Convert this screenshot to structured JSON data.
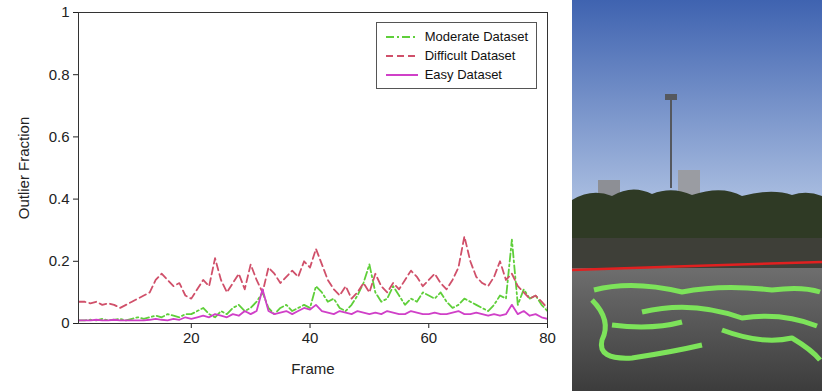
{
  "chart_data": {
    "type": "line",
    "x_label": "Frame",
    "y_label": "Outlier Fraction",
    "x": [
      1,
      2,
      3,
      4,
      5,
      6,
      7,
      8,
      9,
      10,
      11,
      12,
      13,
      14,
      15,
      16,
      17,
      18,
      19,
      20,
      21,
      22,
      23,
      24,
      25,
      26,
      27,
      28,
      29,
      30,
      31,
      32,
      33,
      34,
      35,
      36,
      37,
      38,
      39,
      40,
      41,
      42,
      43,
      44,
      45,
      46,
      47,
      48,
      49,
      50,
      51,
      52,
      53,
      54,
      55,
      56,
      57,
      58,
      59,
      60,
      61,
      62,
      63,
      64,
      65,
      66,
      67,
      68,
      69,
      70,
      71,
      72,
      73,
      74,
      75,
      76,
      77,
      78,
      79,
      80
    ],
    "xlim": [
      1,
      80
    ],
    "xticks": [
      20,
      40,
      60,
      80
    ],
    "ylim": [
      0,
      1
    ],
    "yticks": [
      0,
      0.2,
      0.4,
      0.6,
      0.8,
      1
    ],
    "grid": false,
    "legend": "upper right",
    "series": [
      {
        "name": "Moderate Dataset",
        "color": "#5fcf3a",
        "line_style": "dashdot",
        "values": [
          0.01,
          0.01,
          0.012,
          0.01,
          0.015,
          0.01,
          0.012,
          0.015,
          0.01,
          0.015,
          0.02,
          0.015,
          0.02,
          0.025,
          0.02,
          0.03,
          0.025,
          0.02,
          0.03,
          0.03,
          0.04,
          0.05,
          0.03,
          0.02,
          0.04,
          0.03,
          0.05,
          0.06,
          0.04,
          0.05,
          0.07,
          0.1,
          0.05,
          0.03,
          0.05,
          0.06,
          0.04,
          0.05,
          0.06,
          0.05,
          0.12,
          0.1,
          0.07,
          0.08,
          0.05,
          0.04,
          0.06,
          0.09,
          0.13,
          0.19,
          0.1,
          0.07,
          0.08,
          0.12,
          0.09,
          0.06,
          0.08,
          0.07,
          0.1,
          0.09,
          0.08,
          0.1,
          0.07,
          0.05,
          0.06,
          0.08,
          0.07,
          0.06,
          0.05,
          0.04,
          0.06,
          0.09,
          0.08,
          0.27,
          0.06,
          0.11,
          0.08,
          0.09,
          0.06,
          0.04
        ]
      },
      {
        "name": "Difficult Dataset",
        "color": "#d0506a",
        "line_style": "dashed",
        "values": [
          0.07,
          0.07,
          0.065,
          0.07,
          0.06,
          0.065,
          0.06,
          0.05,
          0.06,
          0.07,
          0.08,
          0.09,
          0.1,
          0.14,
          0.16,
          0.14,
          0.12,
          0.13,
          0.09,
          0.08,
          0.11,
          0.14,
          0.12,
          0.21,
          0.14,
          0.1,
          0.13,
          0.16,
          0.11,
          0.19,
          0.14,
          0.1,
          0.18,
          0.16,
          0.13,
          0.15,
          0.17,
          0.15,
          0.2,
          0.18,
          0.24,
          0.19,
          0.14,
          0.11,
          0.09,
          0.12,
          0.08,
          0.1,
          0.13,
          0.1,
          0.16,
          0.12,
          0.1,
          0.13,
          0.11,
          0.14,
          0.17,
          0.15,
          0.12,
          0.14,
          0.16,
          0.13,
          0.11,
          0.14,
          0.18,
          0.28,
          0.2,
          0.15,
          0.13,
          0.12,
          0.15,
          0.2,
          0.14,
          0.16,
          0.12,
          0.1,
          0.08,
          0.09,
          0.07,
          0.05
        ]
      },
      {
        "name": "Easy Dataset",
        "color": "#d040c8",
        "line_style": "solid",
        "values": [
          0.01,
          0.01,
          0.01,
          0.012,
          0.01,
          0.01,
          0.012,
          0.01,
          0.01,
          0.01,
          0.01,
          0.01,
          0.012,
          0.015,
          0.012,
          0.01,
          0.015,
          0.012,
          0.02,
          0.015,
          0.02,
          0.025,
          0.02,
          0.03,
          0.025,
          0.02,
          0.03,
          0.025,
          0.04,
          0.03,
          0.04,
          0.11,
          0.04,
          0.03,
          0.035,
          0.04,
          0.03,
          0.04,
          0.05,
          0.045,
          0.06,
          0.04,
          0.035,
          0.03,
          0.04,
          0.035,
          0.03,
          0.04,
          0.035,
          0.03,
          0.035,
          0.03,
          0.04,
          0.035,
          0.03,
          0.03,
          0.04,
          0.035,
          0.03,
          0.03,
          0.035,
          0.03,
          0.03,
          0.035,
          0.04,
          0.03,
          0.03,
          0.035,
          0.03,
          0.025,
          0.03,
          0.025,
          0.03,
          0.06,
          0.03,
          0.04,
          0.025,
          0.03,
          0.02,
          0.015
        ]
      }
    ]
  }
}
